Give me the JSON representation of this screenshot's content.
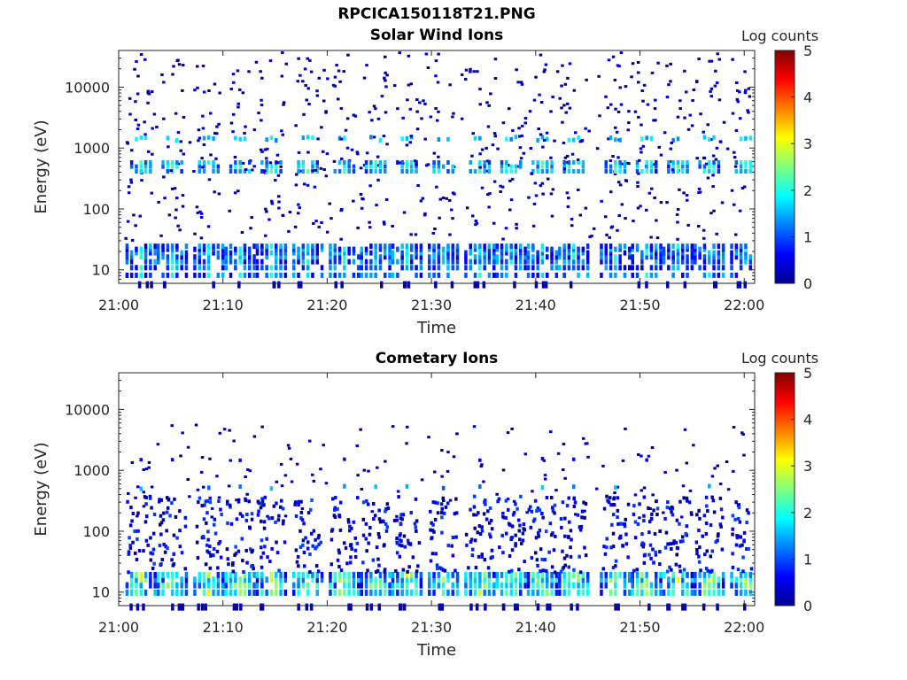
{
  "figure": {
    "title": "RPCICA150118T21.PNG"
  },
  "colorbar": {
    "label": "Log counts",
    "ticks": [
      0,
      1,
      2,
      3,
      4,
      5
    ],
    "range": [
      0,
      5
    ],
    "colormap": "jet"
  },
  "chart_data": [
    {
      "type": "heatmap",
      "title": "Solar Wind Ions",
      "xlabel": "Time",
      "ylabel": "Energy (eV)",
      "yscale": "log",
      "xlim": [
        "21:00",
        "22:01"
      ],
      "ylim": [
        6,
        40000
      ],
      "xticks": [
        "21:00",
        "21:10",
        "21:20",
        "21:30",
        "21:40",
        "21:50",
        "22:00"
      ],
      "yticks": [
        10,
        100,
        1000,
        10000
      ],
      "ytick_labels": [
        "10",
        "100",
        "1000",
        "10000"
      ],
      "scan_times_min": [
        2,
        5,
        8.5,
        11.5,
        14.5,
        18,
        21.5,
        24.5,
        27.5,
        31,
        34.5,
        37.5,
        40.5,
        43.5,
        47.5,
        50.5,
        53.5,
        56.5,
        60
      ],
      "bands": [
        {
          "energy_range_eV": [
            8,
            28
          ],
          "log_counts": 1.2,
          "description": "dense low-energy band"
        },
        {
          "energy_range_eV": [
            400,
            700
          ],
          "log_counts": 2.2,
          "description": "solar wind proton peak"
        },
        {
          "energy_range_eV": [
            1300,
            1800
          ],
          "log_counts": 1.8,
          "description": "alpha particle peak"
        }
      ]
    },
    {
      "type": "heatmap",
      "title": "Cometary Ions",
      "xlabel": "Time",
      "ylabel": "Energy (eV)",
      "yscale": "log",
      "xlim": [
        "21:00",
        "22:01"
      ],
      "ylim": [
        6,
        40000
      ],
      "xticks": [
        "21:00",
        "21:10",
        "21:20",
        "21:30",
        "21:40",
        "21:50",
        "22:00"
      ],
      "yticks": [
        10,
        100,
        1000,
        10000
      ],
      "ytick_labels": [
        "10",
        "100",
        "1000",
        "10000"
      ],
      "scan_times_min": [
        2,
        5,
        8.5,
        11.5,
        14.5,
        18,
        21.5,
        24.5,
        27.5,
        31,
        34.5,
        37.5,
        40.5,
        43.5,
        47.5,
        50.5,
        53.5,
        56.5,
        60
      ],
      "bands": [
        {
          "energy_range_eV": [
            10,
            20
          ],
          "log_counts": 2.7,
          "description": "dense low-energy cometary band"
        },
        {
          "energy_range_eV": [
            20,
            300
          ],
          "log_counts": 1.0,
          "description": "diffuse cometary ions"
        }
      ]
    }
  ]
}
